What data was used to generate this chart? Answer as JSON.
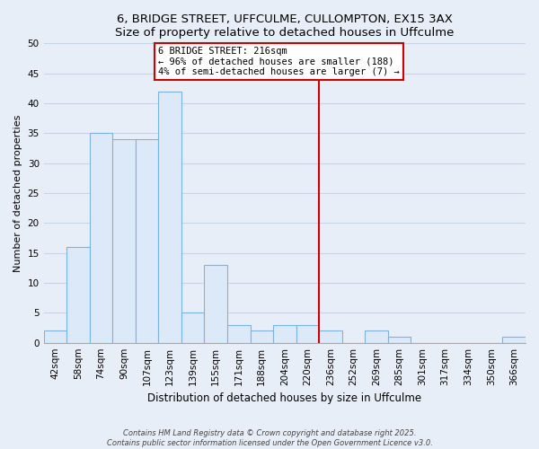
{
  "title1": "6, BRIDGE STREET, UFFCULME, CULLOMPTON, EX15 3AX",
  "title2": "Size of property relative to detached houses in Uffculme",
  "xlabel": "Distribution of detached houses by size in Uffculme",
  "ylabel": "Number of detached properties",
  "bar_labels": [
    "42sqm",
    "58sqm",
    "74sqm",
    "90sqm",
    "107sqm",
    "123sqm",
    "139sqm",
    "155sqm",
    "171sqm",
    "188sqm",
    "204sqm",
    "220sqm",
    "236sqm",
    "252sqm",
    "269sqm",
    "285sqm",
    "301sqm",
    "317sqm",
    "334sqm",
    "350sqm",
    "366sqm"
  ],
  "bar_values": [
    2,
    16,
    35,
    34,
    34,
    42,
    5,
    13,
    3,
    2,
    3,
    3,
    2,
    0,
    2,
    1,
    0,
    0,
    0,
    0,
    1
  ],
  "bar_color": "#dce9f8",
  "bar_edge_color": "#7db3e0",
  "vline_x": 11.5,
  "vline_color": "#cc0000",
  "annotation_title": "6 BRIDGE STREET: 216sqm",
  "annotation_line1": "← 96% of detached houses are smaller (188)",
  "annotation_line2": "4% of semi-detached houses are larger (7) →",
  "ylim": [
    0,
    50
  ],
  "yticks": [
    0,
    5,
    10,
    15,
    20,
    25,
    30,
    35,
    40,
    45,
    50
  ],
  "footnote1": "Contains HM Land Registry data © Crown copyright and database right 2025.",
  "footnote2": "Contains public sector information licensed under the Open Government Licence v3.0.",
  "bg_color": "#e8eef8",
  "grid_color": "#c8d4e8",
  "title_fontsize": 9.5,
  "ylabel_fontsize": 8,
  "xlabel_fontsize": 8.5,
  "tick_fontsize": 7.5,
  "annot_fontsize": 7.5,
  "footnote_fontsize": 6.0
}
